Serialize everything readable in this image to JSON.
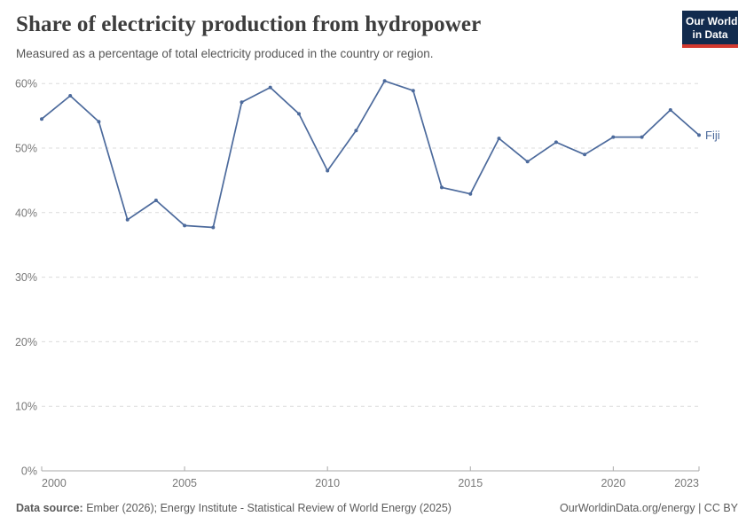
{
  "header": {
    "title": "Share of electricity production from hydropower",
    "subtitle": "Measured as a percentage of total electricity produced in the country or region.",
    "logo": {
      "line1": "Our World",
      "line2": "in Data"
    }
  },
  "chart_data": {
    "type": "line",
    "title": "Share of electricity production from hydropower",
    "x": [
      2000,
      2001,
      2002,
      2003,
      2004,
      2005,
      2006,
      2007,
      2008,
      2009,
      2010,
      2011,
      2012,
      2013,
      2014,
      2015,
      2016,
      2017,
      2018,
      2019,
      2020,
      2021,
      2022,
      2023
    ],
    "series": [
      {
        "name": "Fiji",
        "color": "#4C6A9C",
        "values": [
          54.5,
          58.1,
          54.1,
          38.9,
          41.9,
          38.0,
          37.7,
          57.1,
          59.4,
          55.3,
          46.5,
          52.7,
          60.4,
          58.9,
          43.9,
          42.9,
          51.5,
          47.9,
          50.9,
          49.0,
          51.7,
          51.7,
          55.9,
          52.0
        ]
      }
    ],
    "xlim": [
      2000,
      2023
    ],
    "ylim": [
      0,
      60
    ],
    "x_tick_labels": [
      "2000",
      "2005",
      "2010",
      "2015",
      "2020",
      "2023"
    ],
    "y_tick_labels": [
      "0%",
      "10%",
      "20%",
      "30%",
      "40%",
      "50%",
      "60%"
    ],
    "grid": "horizontal-dashed",
    "legend_position": "end-of-line",
    "end_label": "Fiji"
  },
  "footer": {
    "source_label": "Data source:",
    "source_rest": " Ember (2026); Energy Institute - Statistical Review of World Energy (2025)",
    "credit": "OurWorldinData.org/energy | CC BY"
  },
  "colors": {
    "line": "#4C6A9C",
    "grid": "#DCDCDC",
    "axis": "#A9A9A9",
    "tick_label": "#787878",
    "title": "#3D3D3D",
    "subtitle": "#555555",
    "footer_text": "#5B5B5B",
    "logo_bg": "#122B4E",
    "logo_stripe": "#D3392F"
  }
}
